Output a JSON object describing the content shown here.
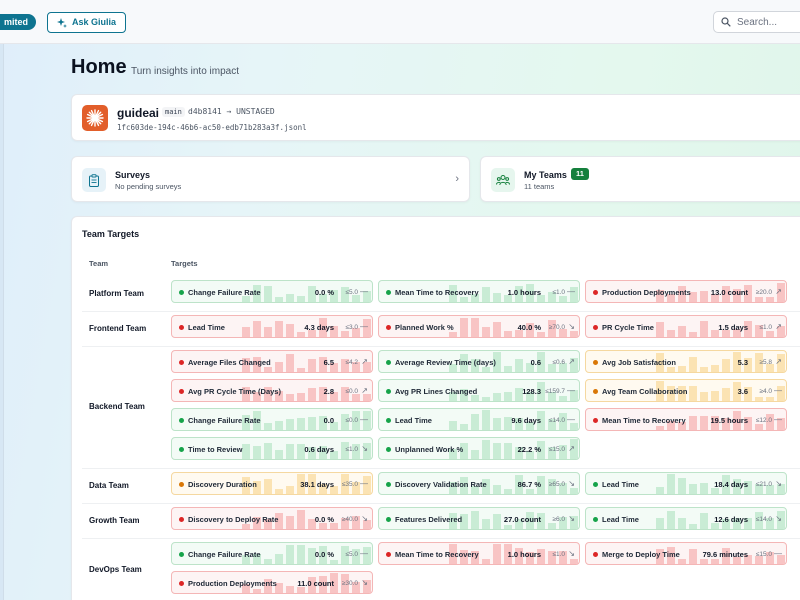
{
  "topbar": {
    "plan_badge": "mited",
    "ask_label": "Ask Giulia",
    "search_placeholder": "Search..."
  },
  "header": {
    "title": "Home",
    "subtitle": "Turn insights into impact"
  },
  "repo": {
    "name": "guideai",
    "branch": "main",
    "commit": "d4b8141 → UNSTAGED",
    "file": "1fc603de-194c-46b6-ac50-edb71b283a3f.jsonl"
  },
  "surveys": {
    "title": "Surveys",
    "subtitle": "No pending surveys"
  },
  "teams": {
    "title": "My Teams",
    "count": "11",
    "subtitle": "11 teams"
  },
  "targets": {
    "title": "Team Targets",
    "col_team": "Team",
    "col_targets": "Targets",
    "colors": {
      "green": "#16a34a",
      "red": "#dc2626",
      "amber": "#d97706"
    },
    "teams": [
      {
        "name": "Platform Team",
        "metrics": [
          {
            "label": "Change Failure Rate",
            "value": "0.0 %",
            "target": "≤5.0",
            "trend": "—",
            "status": "green"
          },
          {
            "label": "Mean Time to Recovery",
            "value": "1.0 hours",
            "target": "≤1.0",
            "trend": "—",
            "status": "green"
          },
          {
            "label": "Production Deployments",
            "value": "13.0 count",
            "target": "≥20.0",
            "trend": "↗",
            "status": "red"
          }
        ]
      },
      {
        "name": "Frontend Team",
        "metrics": [
          {
            "label": "Lead Time",
            "value": "4.3 days",
            "target": "≤3.0",
            "trend": "—",
            "status": "red"
          },
          {
            "label": "Planned Work %",
            "value": "40.0 %",
            "target": "≥70.0",
            "trend": "↘",
            "status": "red"
          },
          {
            "label": "PR Cycle Time",
            "value": "1.5 days",
            "target": "≤1.0",
            "trend": "↗",
            "status": "red"
          }
        ]
      },
      {
        "name": "Backend Team",
        "metrics": [
          {
            "label": "Average Files Changed",
            "value": "6.5",
            "target": "≤4.2",
            "trend": "↗",
            "status": "red"
          },
          {
            "label": "Average Review Time (days)",
            "value": "0.6",
            "target": "≤0.6",
            "trend": "↗",
            "status": "green"
          },
          {
            "label": "Avg Job Satisfaction",
            "value": "5.3",
            "target": "≥5.8",
            "trend": "↗",
            "status": "amber"
          },
          {
            "label": "Avg PR Cycle Time (Days)",
            "value": "2.8",
            "target": "≤0.0",
            "trend": "↗",
            "status": "red"
          },
          {
            "label": "Avg PR Lines Changed",
            "value": "128.3",
            "target": "≤159.7",
            "trend": "—",
            "status": "green"
          },
          {
            "label": "Avg Team Collaboration",
            "value": "3.6",
            "target": "≥4.0",
            "trend": "—",
            "status": "amber"
          },
          {
            "label": "Change Failure Rate",
            "value": "0.0",
            "target": "≤0.0",
            "trend": "—",
            "status": "green"
          },
          {
            "label": "Lead Time",
            "value": "9.6 days",
            "target": "≤14.0",
            "trend": "—",
            "status": "green"
          },
          {
            "label": "Mean Time to Recovery",
            "value": "19.5 hours",
            "target": "≤12.0",
            "trend": "—",
            "status": "red"
          },
          {
            "label": "Time to Review",
            "value": "0.6 days",
            "target": "≤1.0",
            "trend": "↘",
            "status": "green"
          },
          {
            "label": "Unplanned Work %",
            "value": "22.2 %",
            "target": "≤15.0",
            "trend": "↗",
            "status": "green"
          }
        ]
      },
      {
        "name": "Data Team",
        "metrics": [
          {
            "label": "Discovery Duration",
            "value": "38.1 days",
            "target": "≤35.0",
            "trend": "—",
            "status": "amber"
          },
          {
            "label": "Discovery Validation Rate",
            "value": "86.7 %",
            "target": "≥65.0",
            "trend": "↘",
            "status": "green"
          },
          {
            "label": "Lead Time",
            "value": "18.4 days",
            "target": "≤21.0",
            "trend": "↘",
            "status": "green"
          }
        ]
      },
      {
        "name": "Growth Team",
        "metrics": [
          {
            "label": "Discovery to Deploy Rate",
            "value": "0.0 %",
            "target": "≥40.0",
            "trend": "↘",
            "status": "red"
          },
          {
            "label": "Features Delivered",
            "value": "27.0 count",
            "target": "≥6.0",
            "trend": "↘",
            "status": "green"
          },
          {
            "label": "Lead Time",
            "value": "12.6 days",
            "target": "≤14.0",
            "trend": "↘",
            "status": "green"
          }
        ]
      },
      {
        "name": "DevOps Team",
        "metrics": [
          {
            "label": "Change Failure Rate",
            "value": "0.0 %",
            "target": "≤5.0",
            "trend": "—",
            "status": "green"
          },
          {
            "label": "Mean Time to Recovery",
            "value": "1.0 hours",
            "target": "≤1.0",
            "trend": "↘",
            "status": "red"
          },
          {
            "label": "Merge to Deploy Time",
            "value": "79.6 minutes",
            "target": "≤15.0",
            "trend": "—",
            "status": "red"
          },
          {
            "label": "Production Deployments",
            "value": "11.0 count",
            "target": "≥30.0",
            "trend": "↘",
            "status": "red"
          }
        ]
      }
    ]
  }
}
